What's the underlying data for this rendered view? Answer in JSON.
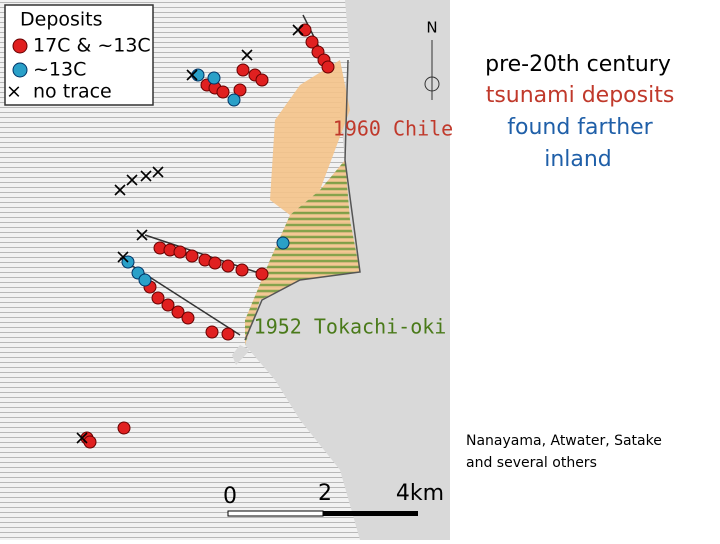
{
  "legend": {
    "title": "Deposits",
    "items": [
      "17C & ~13C",
      "~13C",
      "no trace"
    ]
  },
  "map": {
    "north": "N",
    "labels": [
      "1960 Chile",
      "1952 Tokachi-oki"
    ],
    "scale": [
      "0",
      "2",
      "4km"
    ]
  },
  "caption": [
    "pre-20th century",
    "tsunami deposits",
    "found farther",
    "inland"
  ],
  "credit": [
    "Nanayama, Atwater, Satake",
    "and several others"
  ]
}
